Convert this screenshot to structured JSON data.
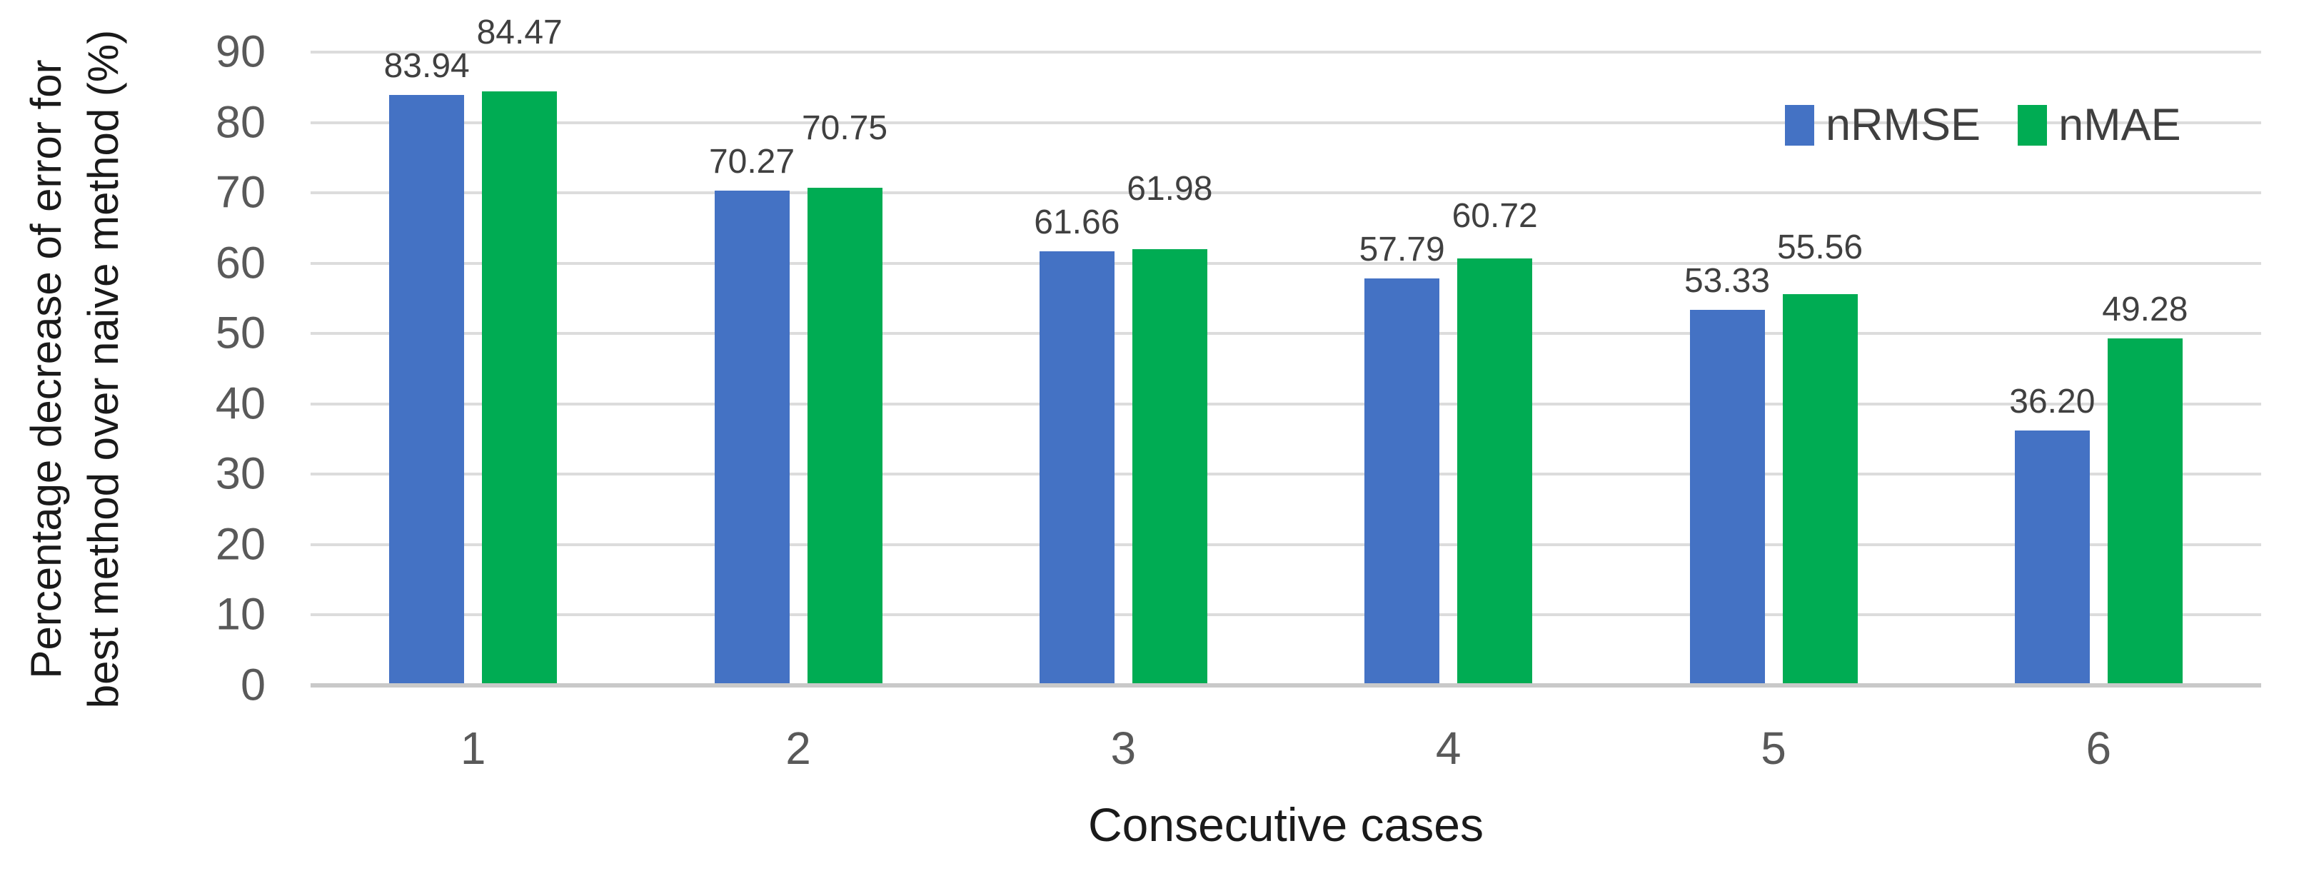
{
  "chart_data": {
    "type": "bar",
    "title": "",
    "categories": [
      "1",
      "2",
      "3",
      "4",
      "5",
      "6"
    ],
    "series": [
      {
        "name": "nRMSE",
        "color": "#4472C4",
        "values": [
          83.94,
          70.27,
          61.66,
          57.79,
          53.33,
          36.2
        ]
      },
      {
        "name": "nMAE",
        "color": "#00AC53",
        "values": [
          84.47,
          70.75,
          61.98,
          60.72,
          55.56,
          49.28
        ]
      }
    ],
    "data_labels_visible": true,
    "data_label_format": "0.00",
    "xlabel": "Consecutive cases",
    "ylabel": "Percentage decrease of error for best method over naive method (%)",
    "ylabel_lines": [
      "Percentage decrease of error for",
      "best method over naive method (%)"
    ],
    "ylim": [
      0,
      90
    ],
    "yticks": [
      0,
      10,
      20,
      30,
      40,
      50,
      60,
      70,
      80,
      90
    ],
    "grid": "horizontal",
    "legend_position": "top-right"
  },
  "colors": {
    "nrmse": "#4472C4",
    "nmae": "#00AC53",
    "gridline": "#DCDCDC",
    "axis_line": "#C9C9C9",
    "tick_label": "#595959",
    "data_label": "#404040",
    "legend_label": "#3F3F3F",
    "axis_title": "#1A1A1A",
    "background": "#FFFFFF"
  }
}
